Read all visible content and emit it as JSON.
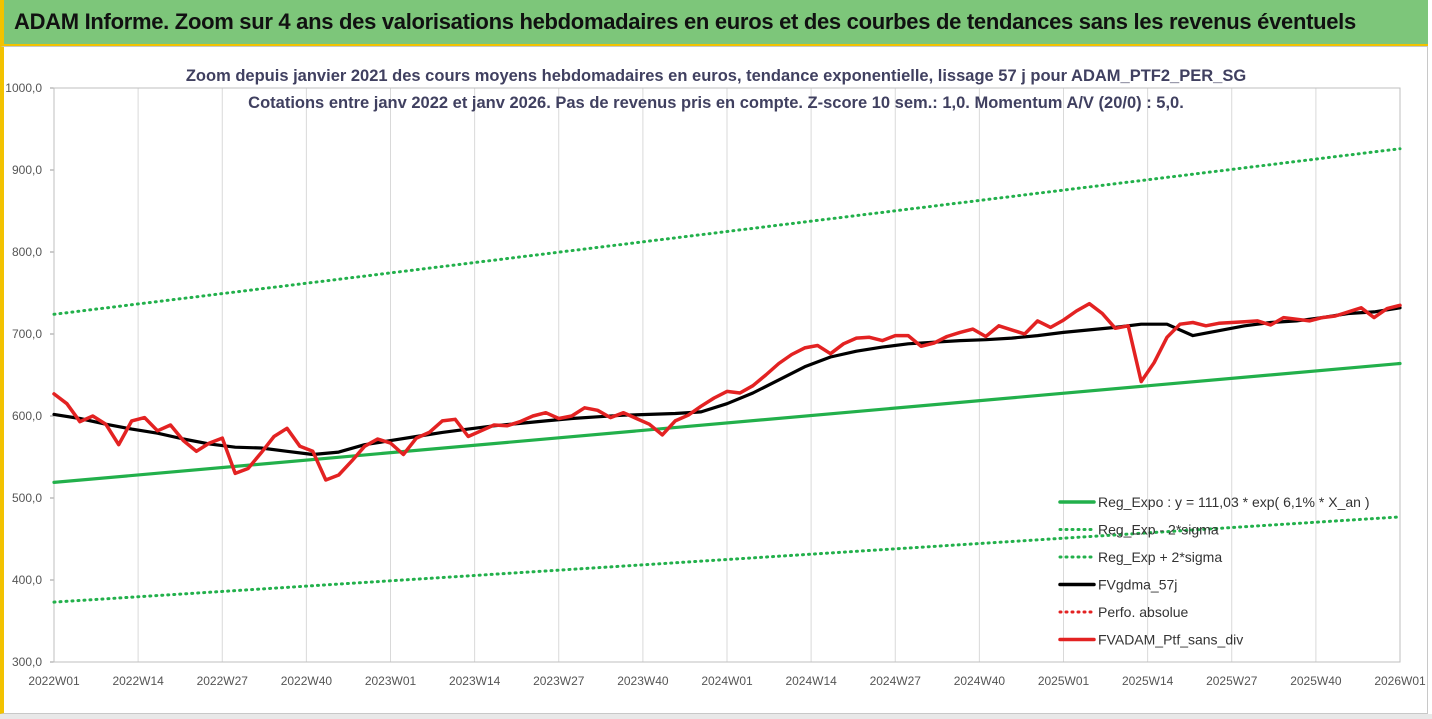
{
  "header": {
    "title": "ADAM Informe. Zoom sur 4 ans des valorisations hebdomadaires en euros et des courbes de tendances sans les revenus éventuels"
  },
  "chart_data": {
    "type": "line",
    "title": "Zoom depuis janvier 2021 des cours moyens hebdomadaires  en euros, tendance exponentielle, lissage 57 j pour ADAM_PTF2_PER_SG",
    "subtitle": "Cotations entre janv 2022 et janv 2026. Pas de revenus pris en compte. Z-score 10 sem.: 1,0. Momentum  A/V (20/0) : 5,0.",
    "ylim": [
      300,
      1000
    ],
    "yticks": [
      "300,0",
      "400,0",
      "500,0",
      "600,0",
      "700,0",
      "800,0",
      "900,0",
      "1000,0"
    ],
    "xticks": [
      "2022W01",
      "2022W14",
      "2022W27",
      "2022W40",
      "2023W01",
      "2023W14",
      "2023W27",
      "2023W40",
      "2024W01",
      "2024W14",
      "2024W27",
      "2024W40",
      "2025W01",
      "2025W14",
      "2025W27",
      "2025W40",
      "2026W01"
    ],
    "grid": "vertical",
    "legend_position": "bottom-right",
    "legend": [
      {
        "label": "Reg_Expo : y = 111,03 * exp( 6,1% *  X_an )",
        "color": "#22b04b",
        "style": "solid"
      },
      {
        "label": "Reg_Exp - 2*sigma",
        "color": "#22b04b",
        "style": "dotted"
      },
      {
        "label": "Reg_Exp + 2*sigma",
        "color": "#22b04b",
        "style": "dotted"
      },
      {
        "label": "FVgdma_57j",
        "color": "#000000",
        "style": "solid"
      },
      {
        "label": "Perfo. absolue",
        "color": "#e32222",
        "style": "dotted"
      },
      {
        "label": "FVADAM_Ptf_sans_div",
        "color": "#e32222",
        "style": "solid"
      }
    ],
    "series": [
      {
        "name": "Reg_Expo : y = 111,03 * exp( 6,1% *  X_an )",
        "x_week": [
          0,
          208
        ],
        "values": [
          519,
          664
        ]
      },
      {
        "name": "Reg_Exp - 2*sigma",
        "x_week": [
          0,
          208
        ],
        "values": [
          373,
          477
        ]
      },
      {
        "name": "Reg_Exp + 2*sigma",
        "x_week": [
          0,
          208
        ],
        "values": [
          724,
          926
        ]
      },
      {
        "name": "FVgdma_57j",
        "x_week": [
          0,
          4,
          8,
          12,
          16,
          20,
          24,
          28,
          32,
          36,
          40,
          44,
          48,
          52,
          56,
          60,
          64,
          68,
          72,
          76,
          80,
          84,
          88,
          92,
          96,
          100,
          104,
          108,
          112,
          116,
          120,
          124,
          128,
          132,
          136,
          140,
          144,
          148,
          152,
          156,
          160,
          164,
          168,
          172,
          176,
          180,
          184,
          188,
          192,
          196,
          200,
          204,
          208
        ],
        "values": [
          602,
          597,
          590,
          584,
          579,
          572,
          566,
          562,
          561,
          557,
          553,
          556,
          565,
          570,
          575,
          580,
          584,
          588,
          591,
          594,
          597,
          599,
          601,
          602,
          603,
          605,
          615,
          628,
          644,
          660,
          672,
          679,
          684,
          688,
          690,
          692,
          693,
          695,
          698,
          702,
          705,
          708,
          712,
          712,
          698,
          704,
          710,
          714,
          716,
          720,
          725,
          727,
          732
        ]
      },
      {
        "name": "FVADAM_Ptf_sans_div",
        "x_week": [
          0,
          2,
          4,
          6,
          8,
          10,
          12,
          14,
          16,
          18,
          20,
          22,
          24,
          26,
          28,
          30,
          32,
          34,
          36,
          38,
          40,
          42,
          44,
          46,
          48,
          50,
          52,
          54,
          56,
          58,
          60,
          62,
          64,
          66,
          68,
          70,
          72,
          74,
          76,
          78,
          80,
          82,
          84,
          86,
          88,
          90,
          92,
          94,
          96,
          98,
          100,
          102,
          104,
          106,
          108,
          110,
          112,
          114,
          116,
          118,
          120,
          122,
          124,
          126,
          128,
          130,
          132,
          134,
          136,
          138,
          140,
          142,
          144,
          146,
          148,
          150,
          152,
          154,
          156,
          158,
          160,
          162,
          164,
          166,
          168,
          170,
          172,
          174,
          176,
          178,
          180,
          182,
          184,
          186,
          188,
          190,
          192,
          194,
          196,
          198,
          200,
          202,
          204,
          206,
          208
        ],
        "values": [
          627,
          615,
          593,
          600,
          590,
          565,
          594,
          598,
          582,
          589,
          570,
          557,
          567,
          573,
          530,
          536,
          555,
          575,
          585,
          563,
          557,
          522,
          528,
          545,
          563,
          572,
          567,
          553,
          573,
          580,
          594,
          596,
          575,
          582,
          589,
          588,
          593,
          600,
          604,
          597,
          600,
          610,
          607,
          598,
          604,
          597,
          590,
          577,
          594,
          601,
          612,
          622,
          630,
          628,
          637,
          650,
          664,
          675,
          683,
          686,
          676,
          688,
          695,
          696,
          692,
          698,
          698,
          685,
          689,
          697,
          702,
          706,
          697,
          710,
          705,
          700,
          716,
          708,
          717,
          728,
          737,
          725,
          707,
          710,
          642,
          665,
          696,
          712,
          714,
          710,
          713,
          714,
          715,
          716,
          711,
          720,
          718,
          716,
          720,
          722,
          727,
          732,
          720,
          731,
          735
        ]
      }
    ]
  }
}
